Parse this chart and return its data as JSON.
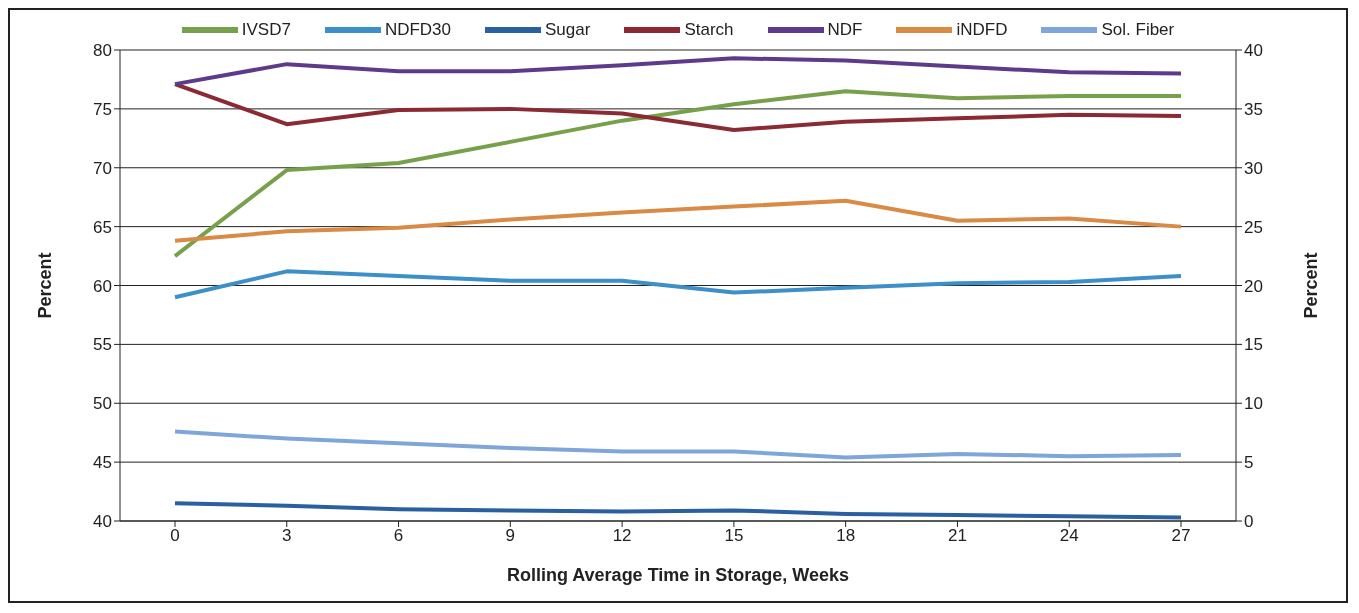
{
  "chart_data": {
    "type": "line",
    "xlabel": "Rolling Average Time in Storage, Weeks",
    "ylabel": "Percent",
    "y2label": "Percent",
    "categories": [
      "0",
      "3",
      "6",
      "9",
      "12",
      "15",
      "18",
      "21",
      "24",
      "27"
    ],
    "series": [
      {
        "name": "IVSD7",
        "color": "#77a04a",
        "values": [
          62.5,
          69.8,
          70.4,
          72.2,
          74.0,
          75.4,
          76.5,
          75.9,
          76.1,
          76.1
        ]
      },
      {
        "name": "NDFD30",
        "color": "#3d8fc8",
        "values": [
          59.0,
          61.2,
          60.8,
          60.4,
          60.4,
          59.4,
          59.8,
          60.2,
          60.3,
          60.8
        ]
      },
      {
        "name": "Sugar",
        "color": "#2a5fa0",
        "axis": "y2",
        "values": [
          1.5,
          1.3,
          1.0,
          0.9,
          0.8,
          0.9,
          0.6,
          0.5,
          0.4,
          0.3
        ]
      },
      {
        "name": "Starch",
        "color": "#8b2a33",
        "axis": "y2",
        "values": [
          37.1,
          33.7,
          34.9,
          35.0,
          34.6,
          33.2,
          33.9,
          34.2,
          34.5,
          34.4
        ]
      },
      {
        "name": "NDF",
        "color": "#5e3a8a",
        "axis": "y2",
        "values": [
          37.1,
          38.8,
          38.2,
          38.2,
          38.7,
          39.3,
          39.1,
          38.6,
          38.1,
          38.0
        ]
      },
      {
        "name": "iNDFD",
        "color": "#d98a45",
        "axis": "y2",
        "values": [
          23.8,
          24.6,
          24.9,
          25.6,
          26.2,
          26.7,
          27.2,
          25.5,
          25.7,
          25.0
        ]
      },
      {
        "name": "Sol. Fiber",
        "color": "#7ea6d8",
        "axis": "y2",
        "values": [
          7.6,
          7.0,
          6.6,
          6.2,
          5.9,
          5.9,
          5.4,
          5.7,
          5.5,
          5.6
        ]
      }
    ],
    "ylim": [
      40,
      80
    ],
    "yticks": [
      40,
      45,
      50,
      55,
      60,
      65,
      70,
      75,
      80
    ],
    "y2lim": [
      0,
      40
    ],
    "y2ticks": [
      0,
      5,
      10,
      15,
      20,
      25,
      30,
      35,
      40
    ],
    "grid": "y",
    "legend": "top",
    "marker": "none",
    "line_style": "solid"
  }
}
